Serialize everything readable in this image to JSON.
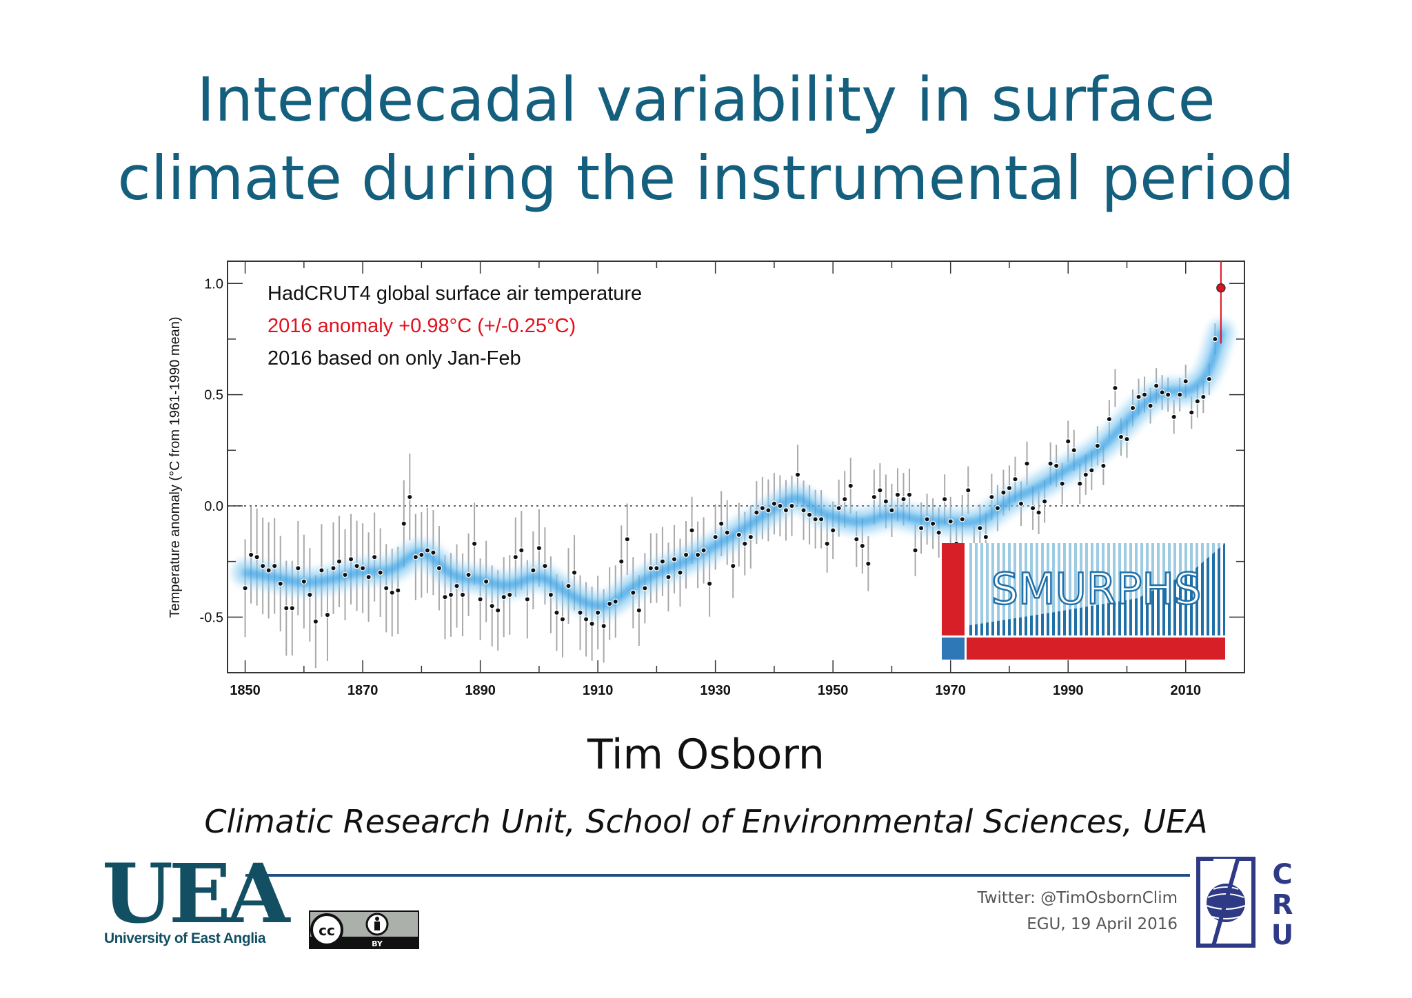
{
  "slide": {
    "title_line1": "Interdecadal variability in surface",
    "title_line2": "climate during the instrumental period",
    "author": "Tim Osborn",
    "affiliation": "Climatic Research Unit, School of Environmental Sciences, UEA",
    "twitter": "Twitter: @TimOsbornClim",
    "event": "EGU, 19 April 2016",
    "uea_logo_text": "UEA",
    "uea_logo_name": "University of East Anglia",
    "cc_text": "cc",
    "cc_by_text": "BY",
    "cru_text": [
      "C",
      "R",
      "U"
    ],
    "smurphs_text": "SMURPHS",
    "title_color": "#145f7e"
  },
  "chart_data": {
    "type": "scatter",
    "annotations": [
      {
        "text": "HadCRUT4 global surface air temperature",
        "color": "#111111"
      },
      {
        "text": "2016 anomaly +0.98°C (+/-0.25°C)",
        "color": "#e3101e"
      },
      {
        "text": "2016 based on only Jan-Feb",
        "color": "#111111"
      }
    ],
    "ylabel": "Temperature anomaly (°C from 1961-1990 mean)",
    "xlabel": "",
    "xlim": [
      1847,
      2020
    ],
    "ylim": [
      -0.75,
      1.1
    ],
    "x_ticks": [
      1850,
      1870,
      1890,
      1910,
      1930,
      1950,
      1970,
      1990,
      2010
    ],
    "y_ticks": [
      -0.5,
      0.0,
      0.5,
      1.0
    ],
    "y_tick_labels": [
      "-0.5",
      "0.0",
      "0.5",
      "1.0"
    ],
    "zero_line": "dotted",
    "grid": false,
    "colors": {
      "points": "#111111",
      "errorbars": "#a8a8a8",
      "smooth": "#2d9be3",
      "highlight": "#e3101e"
    },
    "series": [
      {
        "kind": "annual-points-with-error-bars",
        "x": [
          1850,
          1851,
          1852,
          1853,
          1854,
          1855,
          1856,
          1857,
          1858,
          1859,
          1860,
          1861,
          1862,
          1863,
          1864,
          1865,
          1866,
          1867,
          1868,
          1869,
          1870,
          1871,
          1872,
          1873,
          1874,
          1875,
          1876,
          1877,
          1878,
          1879,
          1880,
          1881,
          1882,
          1883,
          1884,
          1885,
          1886,
          1887,
          1888,
          1889,
          1890,
          1891,
          1892,
          1893,
          1894,
          1895,
          1896,
          1897,
          1898,
          1899,
          1900,
          1901,
          1902,
          1903,
          1904,
          1905,
          1906,
          1907,
          1908,
          1909,
          1910,
          1911,
          1912,
          1913,
          1914,
          1915,
          1916,
          1917,
          1918,
          1919,
          1920,
          1921,
          1922,
          1923,
          1924,
          1925,
          1926,
          1927,
          1928,
          1929,
          1930,
          1931,
          1932,
          1933,
          1934,
          1935,
          1936,
          1937,
          1938,
          1939,
          1940,
          1941,
          1942,
          1943,
          1944,
          1945,
          1946,
          1947,
          1948,
          1949,
          1950,
          1951,
          1952,
          1953,
          1954,
          1955,
          1956,
          1957,
          1958,
          1959,
          1960,
          1961,
          1962,
          1963,
          1964,
          1965,
          1966,
          1967,
          1968,
          1969,
          1970,
          1971,
          1972,
          1973,
          1974,
          1975,
          1976,
          1977,
          1978,
          1979,
          1980,
          1981,
          1982,
          1983,
          1984,
          1985,
          1986,
          1987,
          1988,
          1989,
          1990,
          1991,
          1992,
          1993,
          1994,
          1995,
          1996,
          1997,
          1998,
          1999,
          2000,
          2001,
          2002,
          2003,
          2004,
          2005,
          2006,
          2007,
          2008,
          2009,
          2010,
          2011,
          2012,
          2013,
          2014,
          2015
        ],
        "y": [
          -0.37,
          -0.22,
          -0.23,
          -0.27,
          -0.29,
          -0.27,
          -0.35,
          -0.46,
          -0.46,
          -0.28,
          -0.34,
          -0.4,
          -0.52,
          -0.29,
          -0.49,
          -0.28,
          -0.25,
          -0.31,
          -0.24,
          -0.27,
          -0.28,
          -0.32,
          -0.23,
          -0.3,
          -0.37,
          -0.39,
          -0.38,
          -0.08,
          0.04,
          -0.23,
          -0.22,
          -0.2,
          -0.21,
          -0.28,
          -0.41,
          -0.4,
          -0.36,
          -0.4,
          -0.31,
          -0.17,
          -0.42,
          -0.34,
          -0.45,
          -0.47,
          -0.41,
          -0.4,
          -0.23,
          -0.2,
          -0.42,
          -0.29,
          -0.19,
          -0.27,
          -0.4,
          -0.48,
          -0.51,
          -0.36,
          -0.3,
          -0.48,
          -0.51,
          -0.53,
          -0.48,
          -0.54,
          -0.44,
          -0.43,
          -0.25,
          -0.15,
          -0.39,
          -0.47,
          -0.37,
          -0.28,
          -0.28,
          -0.25,
          -0.32,
          -0.24,
          -0.3,
          -0.22,
          -0.11,
          -0.22,
          -0.2,
          -0.35,
          -0.14,
          -0.08,
          -0.12,
          -0.27,
          -0.13,
          -0.17,
          -0.14,
          -0.03,
          -0.01,
          -0.02,
          0.01,
          0.0,
          -0.02,
          0.0,
          0.14,
          -0.02,
          -0.04,
          -0.06,
          -0.06,
          -0.17,
          -0.11,
          -0.01,
          0.03,
          0.09,
          -0.15,
          -0.18,
          -0.26,
          0.04,
          0.07,
          0.02,
          -0.02,
          0.05,
          0.03,
          0.05,
          -0.2,
          -0.1,
          -0.06,
          -0.08,
          -0.12,
          0.03,
          -0.07,
          -0.17,
          -0.06,
          0.07,
          -0.2,
          -0.1,
          -0.14,
          0.04,
          -0.01,
          0.06,
          0.08,
          0.12,
          0.01,
          0.19,
          -0.01,
          -0.03,
          0.02,
          0.19,
          0.18,
          0.1,
          0.29,
          0.25,
          0.1,
          0.14,
          0.16,
          0.27,
          0.18,
          0.39,
          0.53,
          0.31,
          0.3,
          0.44,
          0.49,
          0.5,
          0.45,
          0.54,
          0.51,
          0.5,
          0.4,
          0.5,
          0.56,
          0.42,
          0.47,
          0.49,
          0.57,
          0.75
        ]
      },
      {
        "kind": "smoothed-curve",
        "x": [
          1850,
          1855,
          1860,
          1865,
          1870,
          1875,
          1880,
          1885,
          1890,
          1895,
          1900,
          1905,
          1910,
          1913,
          1915,
          1920,
          1925,
          1930,
          1935,
          1940,
          1944,
          1947,
          1950,
          1955,
          1960,
          1965,
          1970,
          1975,
          1980,
          1985,
          1990,
          1995,
          2000,
          2003,
          2005,
          2008,
          2010,
          2012,
          2014,
          2016
        ],
        "y": [
          -0.3,
          -0.32,
          -0.35,
          -0.33,
          -0.29,
          -0.3,
          -0.18,
          -0.32,
          -0.33,
          -0.37,
          -0.3,
          -0.4,
          -0.46,
          -0.43,
          -0.38,
          -0.3,
          -0.25,
          -0.18,
          -0.1,
          -0.01,
          0.05,
          -0.02,
          -0.05,
          -0.08,
          -0.03,
          -0.07,
          -0.07,
          -0.08,
          0.03,
          0.08,
          0.17,
          0.24,
          0.38,
          0.46,
          0.5,
          0.52,
          0.51,
          0.54,
          0.6,
          0.78
        ]
      },
      {
        "kind": "highlight-point",
        "x": [
          2016
        ],
        "y": [
          0.98
        ],
        "error": [
          0.25
        ]
      }
    ]
  }
}
